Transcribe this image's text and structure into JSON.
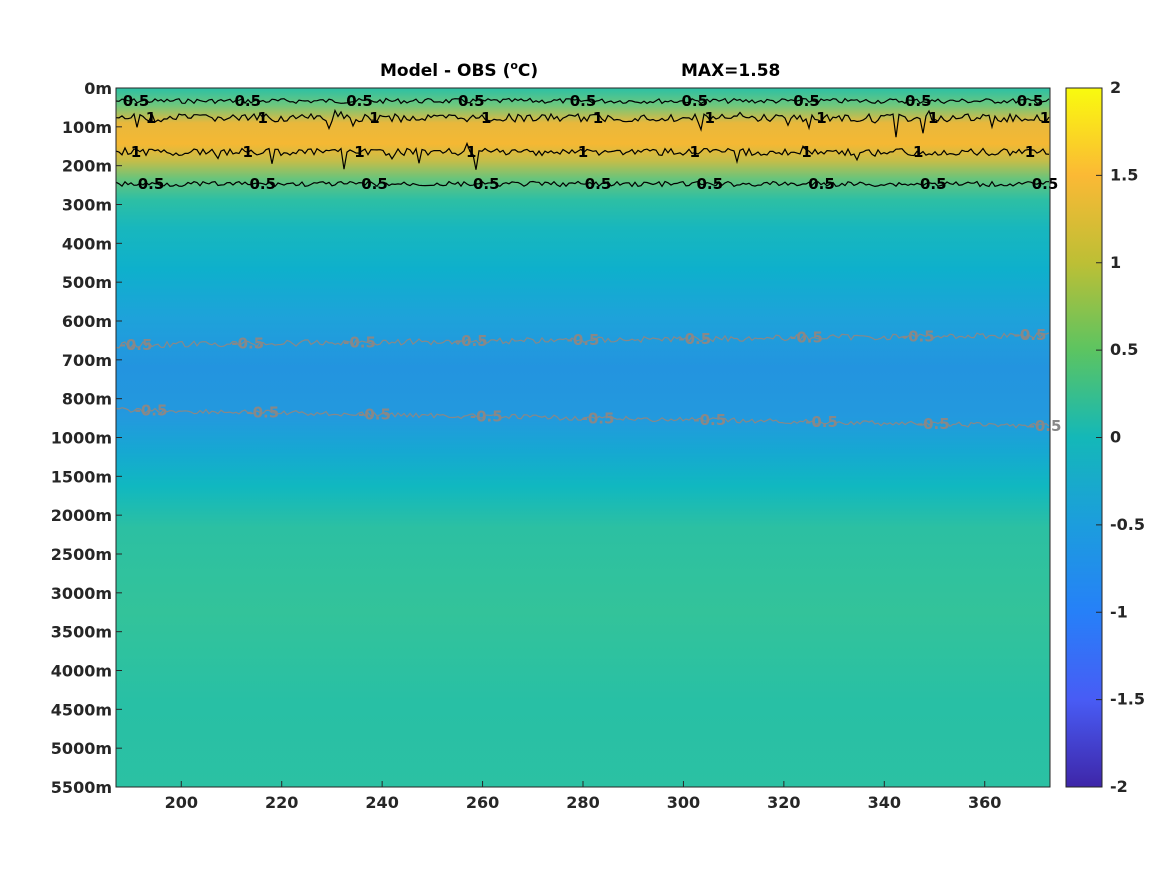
{
  "chart_data": {
    "type": "heatmap",
    "title": "Model - OBS (°C)",
    "title_main": "Model - OBS (",
    "title_unit_sup": "o",
    "title_unit": "C)",
    "max_label": "MAX=1.58",
    "xlim": [
      187,
      373
    ],
    "x_ticks": [
      200,
      220,
      240,
      260,
      280,
      300,
      320,
      340,
      360
    ],
    "y_tick_labels": [
      "0m",
      "100m",
      "200m",
      "300m",
      "400m",
      "500m",
      "600m",
      "700m",
      "800m",
      "1000m",
      "1500m",
      "2000m",
      "2500m",
      "3000m",
      "3500m",
      "4000m",
      "4500m",
      "5000m",
      "5500m"
    ],
    "depth_profile": [
      {
        "depth": "0m",
        "value": 0.3
      },
      {
        "depth": "50m",
        "value": 0.6
      },
      {
        "depth": "100m",
        "value": 1.3
      },
      {
        "depth": "150m",
        "value": 1.2
      },
      {
        "depth": "200m",
        "value": 0.6
      },
      {
        "depth": "300m",
        "value": 0.2
      },
      {
        "depth": "400m",
        "value": 0.05
      },
      {
        "depth": "500m",
        "value": -0.1
      },
      {
        "depth": "600m",
        "value": -0.35
      },
      {
        "depth": "700m",
        "value": -0.5
      },
      {
        "depth": "800m",
        "value": -0.5
      },
      {
        "depth": "1000m",
        "value": -0.4
      },
      {
        "depth": "1500m",
        "value": -0.05
      },
      {
        "depth": "2000m",
        "value": 0.25
      },
      {
        "depth": "3000m",
        "value": 0.32
      },
      {
        "depth": "4000m",
        "value": 0.28
      },
      {
        "depth": "5500m",
        "value": 0.3
      }
    ],
    "contours": [
      {
        "level": 0.5,
        "label": "0.5",
        "color": "#000000",
        "depths": [
          "~30m",
          "~250m"
        ]
      },
      {
        "level": 1,
        "label": "1",
        "color": "#000000",
        "depths": [
          "~70m",
          "~160m"
        ]
      },
      {
        "level": -0.5,
        "label": "-0.5",
        "color": "#808080",
        "depths": [
          "~650m",
          "~820m"
        ]
      }
    ],
    "colorbar": {
      "range": [
        -2,
        2
      ],
      "tick_labels": [
        "2",
        "1.5",
        "1",
        "0.5",
        "0",
        "-0.5",
        "-1",
        "-1.5",
        "-2"
      ],
      "colormap": "parula"
    }
  }
}
